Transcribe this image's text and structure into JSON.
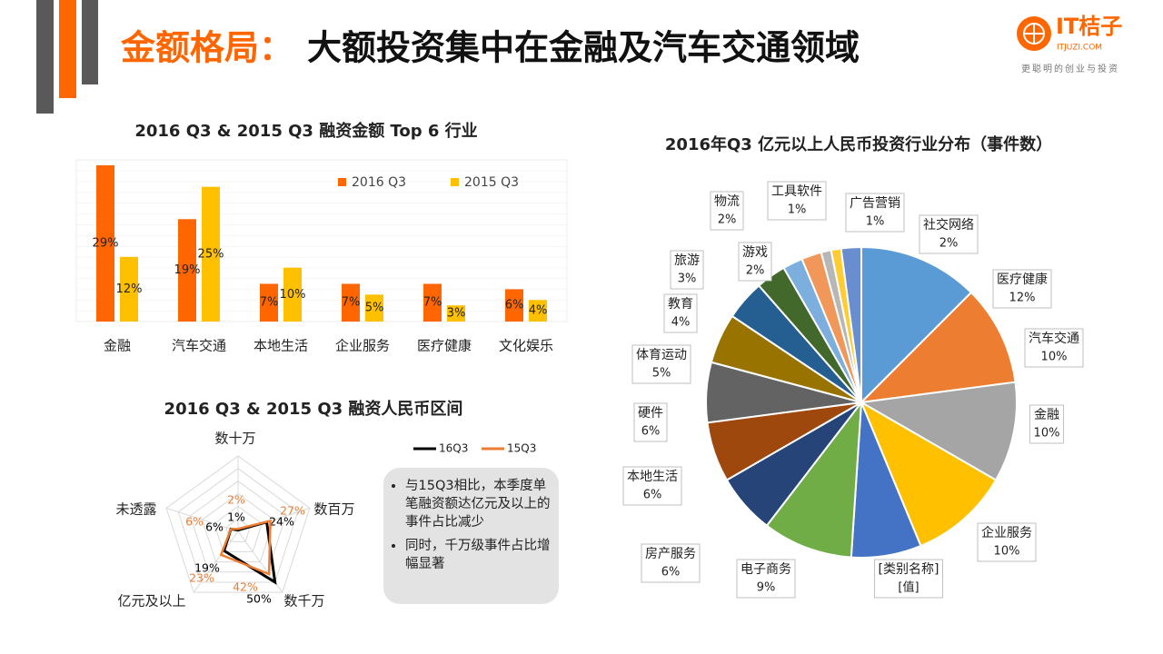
{
  "header": {
    "title_accent": "金额格局：",
    "title_main": "大额投资集中在金融及汽车交通领域"
  },
  "logo": {
    "brand": "IT桔子",
    "site": "ITJUZI.COM",
    "slogan": "更聪明的创业与投资"
  },
  "note": {
    "bullets": [
      "与15Q3相比，本季度单笔融资额达亿元及以上的事件占比减少",
      "同时，千万级事件占比增幅显著"
    ]
  },
  "chart_data": [
    {
      "type": "bar",
      "title": "2016 Q3 & 2015 Q3 融资金额 Top 6 行业",
      "categories": [
        "金融",
        "汽车交通",
        "本地生活",
        "企业服务",
        "医疗健康",
        "文化娱乐"
      ],
      "series": [
        {
          "name": "2016 Q3",
          "color": "#ff6600",
          "values": [
            29,
            19,
            7,
            7,
            7,
            6
          ],
          "value_labels": [
            "29%",
            "19%",
            "7%",
            "7%",
            "7%",
            "6%"
          ]
        },
        {
          "name": "2015 Q3",
          "color": "#ffc000",
          "values": [
            12,
            25,
            10,
            5,
            3,
            4
          ],
          "value_labels": [
            "12%",
            "25%",
            "10%",
            "5%",
            "3%",
            "4%"
          ]
        }
      ],
      "ylim": [
        0,
        30
      ],
      "grid": true,
      "legend": "top-right"
    },
    {
      "type": "radar",
      "title": "2016 Q3 & 2015 Q3 融资人民币区间",
      "categories": [
        "数十万",
        "数百万",
        "数千万",
        "亿元及以上",
        "未透露"
      ],
      "series": [
        {
          "name": "16Q3",
          "color": "#000000",
          "values": [
            1,
            24,
            50,
            19,
            6
          ],
          "value_labels": [
            "1%",
            "24%",
            "50%",
            "19%",
            "6%"
          ]
        },
        {
          "name": "15Q3",
          "color": "#ed7d31",
          "values": [
            2,
            27,
            42,
            23,
            6
          ],
          "value_labels": [
            "2%",
            "27%",
            "42%",
            "23%",
            "6%"
          ]
        }
      ],
      "rlim": [
        0,
        60
      ],
      "legend": "top"
    },
    {
      "type": "pie",
      "title": "2016年Q3 亿元以上人民币投资行业分布（事件数）",
      "categories": [
        "医疗健康",
        "汽车交通",
        "金融",
        "企业服务",
        "[类别名称]",
        "电子商务",
        "房产服务",
        "本地生活",
        "硬件",
        "体育运动",
        "教育",
        "旅游",
        "游戏",
        "物流",
        "工具软件",
        "广告营销",
        "社交网络"
      ],
      "values": [
        12,
        10,
        10,
        10,
        7,
        9,
        6,
        6,
        6,
        5,
        4,
        3,
        2,
        2,
        1,
        1,
        2
      ],
      "value_labels": [
        "12%",
        "10%",
        "10%",
        "10%",
        "[值]",
        "9%",
        "6%",
        "6%",
        "6%",
        "5%",
        "4%",
        "3%",
        "2%",
        "2%",
        "1%",
        "1%",
        "2%"
      ],
      "colors": [
        "#5b9bd5",
        "#ed7d31",
        "#a5a5a5",
        "#ffc000",
        "#4472c4",
        "#70ad47",
        "#264478",
        "#9e480e",
        "#636363",
        "#997300",
        "#255e91",
        "#43682b",
        "#7cafdd",
        "#f1975a",
        "#b7b7b7",
        "#ffcd33",
        "#698ed0"
      ]
    }
  ]
}
